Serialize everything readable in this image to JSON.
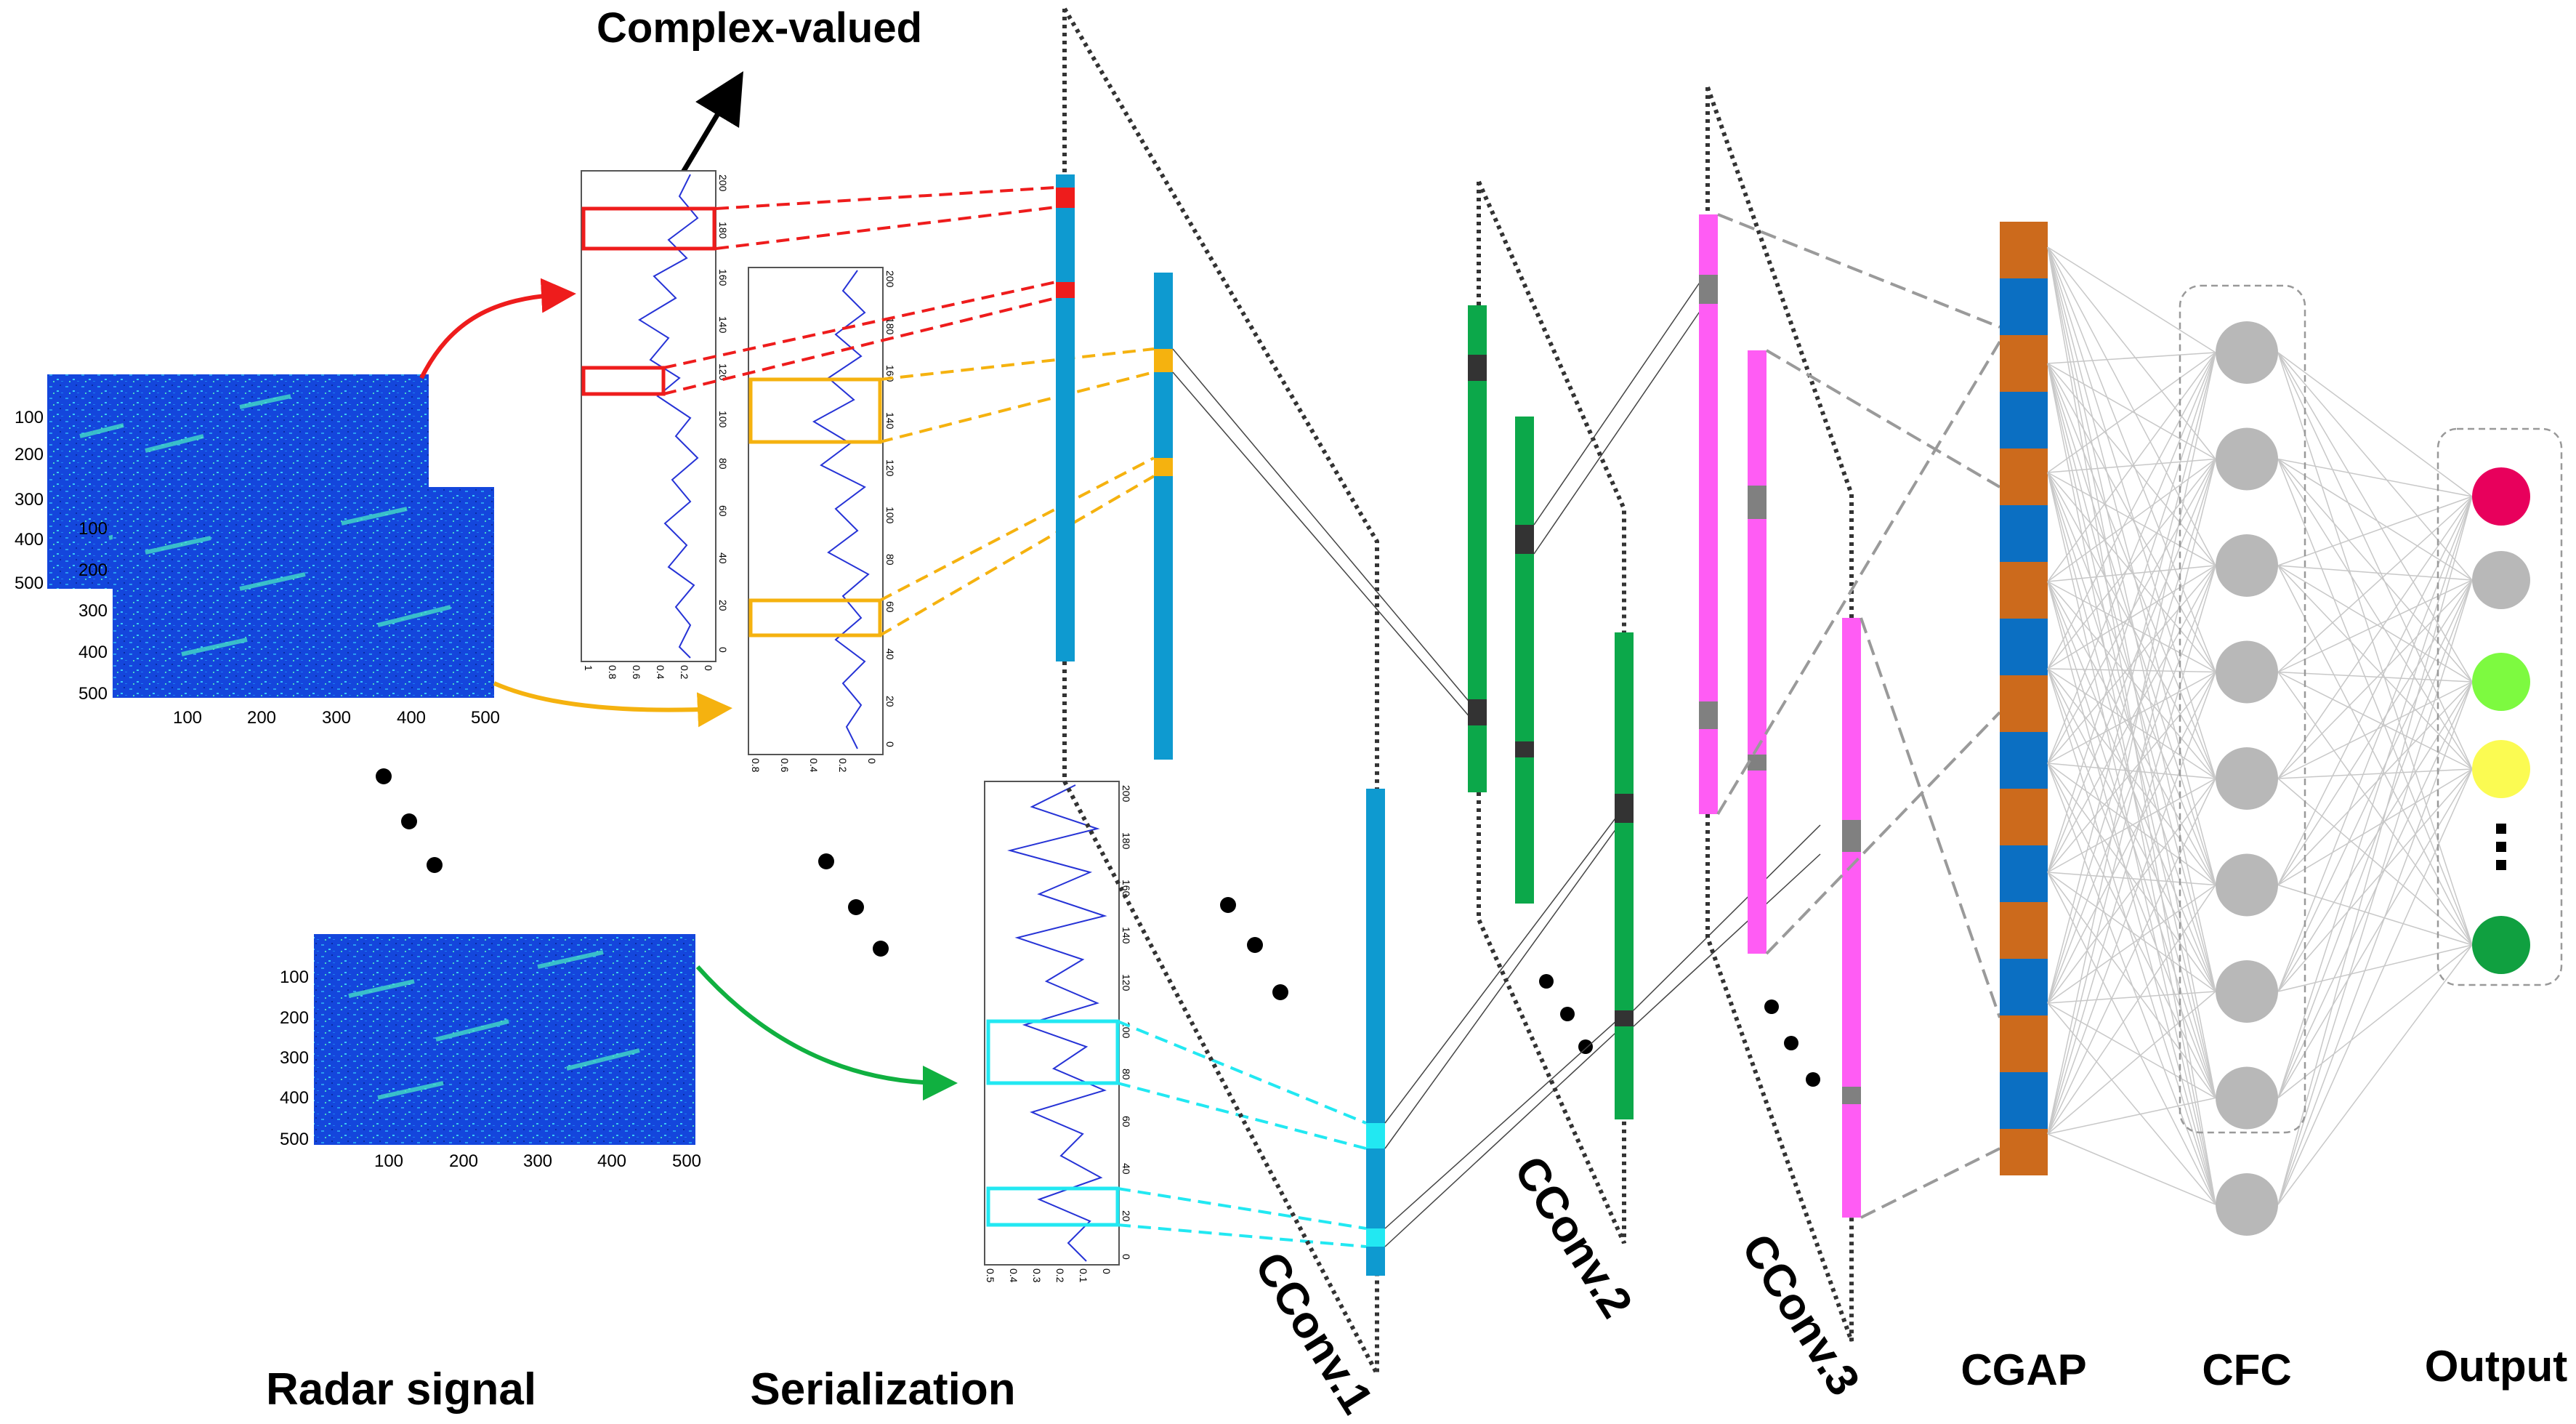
{
  "title": "Complex-valued",
  "labels": {
    "radar_signal": "Radar signal",
    "serialization": "Serialization",
    "cconv1": "CConv.1",
    "cconv2": "CConv.2",
    "cconv3": "CConv.3",
    "cgap": "CGAP",
    "cfc": "CFC",
    "output": "Output"
  },
  "radar_ticks": {
    "y_back": [
      "100",
      "200",
      "300",
      "400",
      "500"
    ],
    "y_front": [
      "100",
      "200",
      "300",
      "400",
      "500"
    ],
    "x": [
      "100",
      "200",
      "300",
      "400",
      "500"
    ]
  },
  "series_ticks": {
    "plot1_axis": [
      "200",
      "180",
      "160",
      "140",
      "120",
      "100",
      "80",
      "60",
      "40",
      "20",
      "0"
    ],
    "plot1_values": [
      "1",
      "0.8",
      "0.6",
      "0.4",
      "0.2",
      "0"
    ],
    "plot2_axis": [
      "200",
      "180",
      "160",
      "140",
      "120",
      "100",
      "80",
      "60",
      "40",
      "20",
      "0"
    ],
    "plot2_values": [
      "0.8",
      "0.6",
      "0.4",
      "0.2",
      "0"
    ],
    "plot3_axis": [
      "200",
      "180",
      "160",
      "140",
      "120",
      "100",
      "80",
      "60",
      "40",
      "20",
      "0"
    ],
    "plot3_values": [
      "0.5",
      "0.4",
      "0.3",
      "0.2",
      "0.1",
      "0"
    ]
  },
  "colors": {
    "bar_blue": "#0e9ad0",
    "bar_green": "#0ca84a",
    "bar_pink": "#ff5cf4",
    "cgap_orange": "#cc6a1c",
    "cgap_blue": "#0b6fc2",
    "red": "#ee1c1c",
    "amber": "#f5b20f",
    "cyan": "#22e8f2",
    "green_arrow": "#10b040",
    "neuron_gray": "#b8b8b8"
  },
  "output_nodes": [
    "#e8005c",
    "#b8b8b8",
    "#7dfa40",
    "#fbfb52",
    "#10a040"
  ],
  "cfc_nodes": 9
}
